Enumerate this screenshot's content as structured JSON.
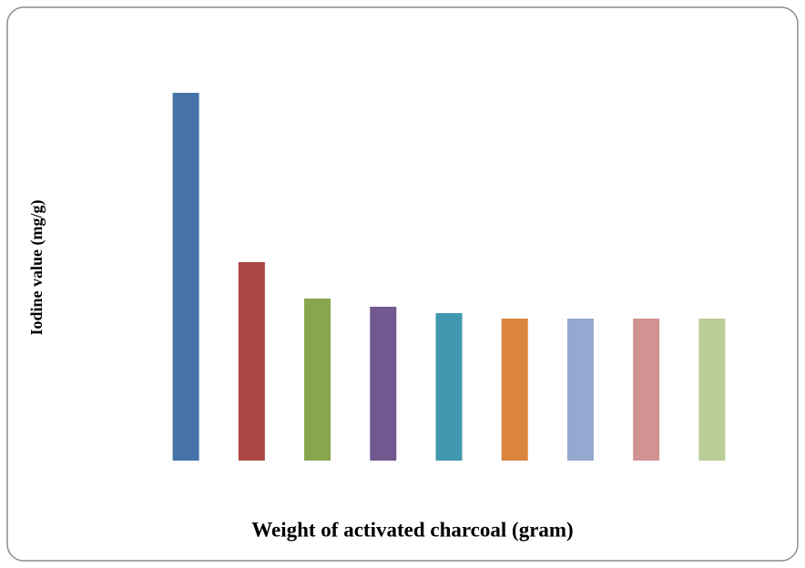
{
  "chart_data": {
    "type": "bar",
    "x_label": "Weight of activated charcoal (gram)",
    "y_label": "Iodine value (mg/g)",
    "categories": [
      null,
      null,
      null,
      null,
      null,
      null,
      null,
      null,
      null
    ],
    "values": [
      404,
      218,
      178,
      169,
      162,
      156,
      156,
      156,
      156
    ],
    "colors": [
      "#4572a7",
      "#aa4643",
      "#89a54e",
      "#71588f",
      "#4198af",
      "#db843d",
      "#93a9cf",
      "#d19392",
      "#b9cd96"
    ],
    "ylim": [
      0,
      404
    ]
  }
}
